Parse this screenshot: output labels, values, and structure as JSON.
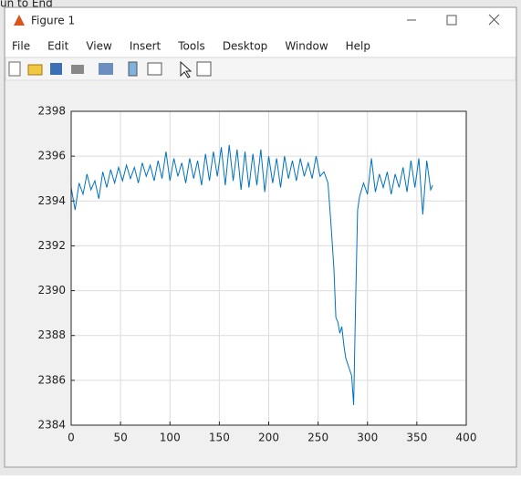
{
  "background_text": "un to End",
  "window": {
    "title": "Figure 1",
    "menu": [
      "File",
      "Edit",
      "View",
      "Insert",
      "Tools",
      "Desktop",
      "Window",
      "Help"
    ]
  },
  "chart_data": {
    "type": "line",
    "color": "#0072bd",
    "grid": true,
    "xlim": [
      0,
      400
    ],
    "xticks": [
      0,
      50,
      100,
      150,
      200,
      250,
      300,
      350,
      400
    ],
    "ylim": [
      2384,
      2398
    ],
    "yticks": [
      2384,
      2386,
      2388,
      2390,
      2392,
      2394,
      2396,
      2398
    ],
    "x": [
      0,
      4,
      8,
      12,
      16,
      20,
      24,
      28,
      32,
      36,
      40,
      44,
      48,
      52,
      56,
      60,
      64,
      68,
      72,
      76,
      80,
      84,
      88,
      92,
      96,
      100,
      104,
      108,
      112,
      116,
      120,
      124,
      128,
      132,
      136,
      140,
      144,
      148,
      152,
      156,
      160,
      164,
      168,
      172,
      176,
      180,
      184,
      188,
      192,
      196,
      200,
      204,
      208,
      212,
      216,
      220,
      224,
      228,
      232,
      236,
      240,
      244,
      248,
      252,
      256,
      260,
      263,
      266,
      268,
      270,
      272,
      274,
      276,
      278,
      281,
      284,
      286,
      288,
      290,
      292,
      296,
      300,
      304,
      308,
      312,
      316,
      320,
      324,
      328,
      332,
      336,
      340,
      344,
      348,
      352,
      356,
      360,
      364,
      366
    ],
    "values": [
      2394.6,
      2393.6,
      2394.8,
      2394.3,
      2395.2,
      2394.5,
      2394.9,
      2394.1,
      2395.3,
      2394.6,
      2395.4,
      2394.8,
      2395.5,
      2394.9,
      2395.6,
      2395.0,
      2395.5,
      2394.8,
      2395.7,
      2395.1,
      2395.6,
      2394.9,
      2395.8,
      2395.0,
      2396.2,
      2394.9,
      2395.9,
      2395.1,
      2395.7,
      2394.8,
      2395.9,
      2395.0,
      2395.8,
      2394.7,
      2396.1,
      2394.9,
      2396.2,
      2395.1,
      2396.4,
      2394.7,
      2396.5,
      2394.9,
      2396.3,
      2394.5,
      2396.2,
      2394.6,
      2396.1,
      2394.7,
      2396.3,
      2394.4,
      2396.0,
      2394.8,
      2395.9,
      2394.6,
      2396.0,
      2395.0,
      2395.8,
      2394.9,
      2395.9,
      2395.1,
      2395.7,
      2395.0,
      2396.0,
      2395.1,
      2395.3,
      2394.8,
      2393.0,
      2391.0,
      2388.8,
      2388.6,
      2388.1,
      2388.4,
      2387.6,
      2387.0,
      2386.6,
      2386.2,
      2384.9,
      2389.5,
      2393.6,
      2394.2,
      2394.8,
      2394.3,
      2395.9,
      2394.4,
      2395.2,
      2394.6,
      2395.3,
      2394.3,
      2395.2,
      2394.6,
      2395.5,
      2394.4,
      2395.8,
      2394.6,
      2395.9,
      2393.4,
      2395.8,
      2394.5,
      2394.7
    ]
  }
}
